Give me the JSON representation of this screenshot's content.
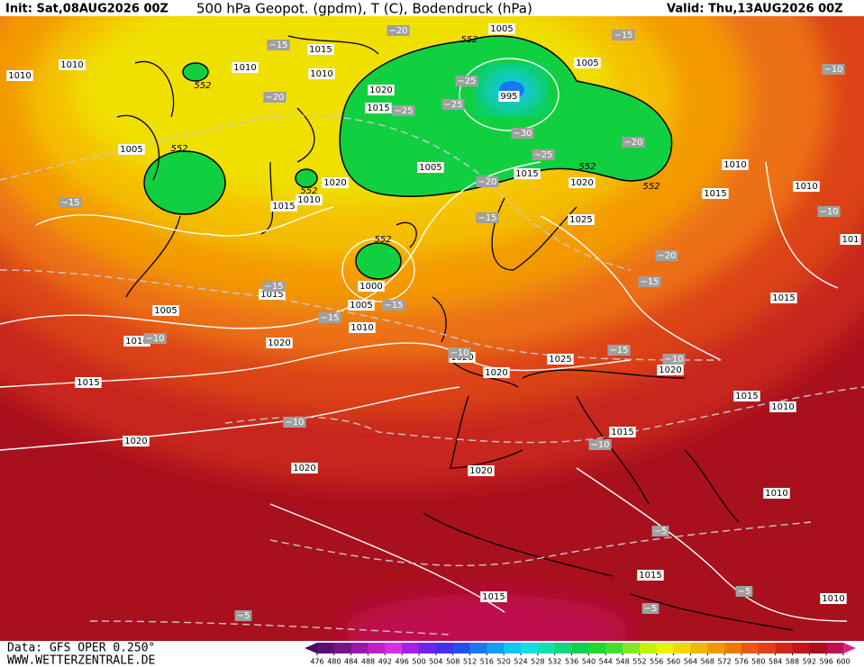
{
  "header": {
    "init": "Init: Sat,08AUG2026 00Z",
    "title": "500 hPa Geopot. (gpdm), T (C), Bodendruck (hPa)",
    "valid": "Valid: Thu,13AUG2026 00Z"
  },
  "footer": {
    "data": "Data: GFS OPER 0.250°",
    "site": "WWW.WETTERZENTRALE.DE"
  },
  "colorbar": {
    "levels": [
      476,
      480,
      484,
      488,
      492,
      496,
      500,
      504,
      508,
      512,
      516,
      520,
      524,
      528,
      532,
      536,
      540,
      544,
      548,
      552,
      556,
      560,
      564,
      568,
      572,
      576,
      580,
      584,
      588,
      592,
      596,
      600
    ],
    "colors": [
      "#4b0a5e",
      "#5a1070",
      "#781488",
      "#9a18a8",
      "#c020c8",
      "#d830e0",
      "#a020f0",
      "#7020f0",
      "#4030f0",
      "#2050f0",
      "#1878f0",
      "#10a0f0",
      "#10c8f0",
      "#10e0e0",
      "#10e0b0",
      "#10d880",
      "#10d050",
      "#20d830",
      "#40e030",
      "#80e820",
      "#c8f000",
      "#f0f000",
      "#f0d800",
      "#f0b800",
      "#f09800",
      "#f07800",
      "#e85810",
      "#e04018",
      "#d02818",
      "#c01818",
      "#a81020",
      "#c01050",
      "#e02080"
    ]
  },
  "pressure_labels": [
    "1010",
    "1010",
    "1010",
    "1015",
    "1010",
    "1005",
    "1005",
    "1020",
    "1015",
    "995",
    "1005",
    "1005",
    "1015",
    "1020",
    "1020",
    "1010",
    "1015",
    "1010",
    "1015",
    "1010",
    "1025",
    "1015",
    "1005",
    "1000",
    "1005",
    "1010",
    "1010",
    "1020",
    "1020",
    "1020",
    "1025",
    "1020",
    "1015",
    "1015",
    "1015",
    "1010",
    "1015",
    "1020",
    "1020",
    "1020",
    "1010",
    "1015",
    "1015",
    "1010",
    "101"
  ],
  "temperature_labels": [
    "−20",
    "−15",
    "−15",
    "−10",
    "−20",
    "−25",
    "−25",
    "−25",
    "−30",
    "−20",
    "−25",
    "−20",
    "−15",
    "−15",
    "−10",
    "−20",
    "−15",
    "−15",
    "−15",
    "−15",
    "−10",
    "−10",
    "−15",
    "−10",
    "−10",
    "−10",
    "−5",
    "−5",
    "−5",
    "−5"
  ],
  "height_labels": [
    "552",
    "552",
    "552",
    "552",
    "552",
    "552",
    "552"
  ]
}
